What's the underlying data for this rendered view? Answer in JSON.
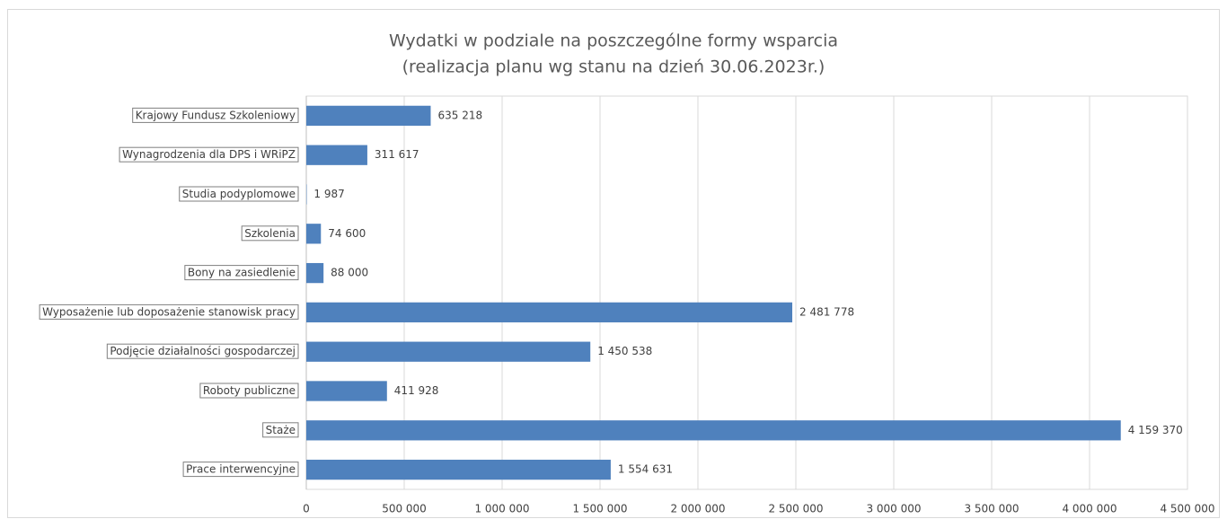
{
  "chart_data": {
    "type": "bar",
    "orientation": "horizontal",
    "title": [
      "Wydatki w podziale na poszczególne formy wsparcia",
      "(realizacja planu wg stanu na dzień 30.06.2023r.)"
    ],
    "categories": [
      "Krajowy Fundusz Szkoleniowy",
      "Wynagrodzenia dla DPS i WRiPZ",
      "Studia podyplomowe",
      "Szkolenia",
      "Bony na zasiedlenie",
      "Wyposażenie lub doposażenie stanowisk pracy",
      "Podjęcie działalności gospodarczej",
      "Roboty publiczne",
      "Staże",
      "Prace interwencyjne"
    ],
    "values": [
      635218,
      311617,
      1987,
      74600,
      88000,
      2481778,
      1450538,
      411928,
      4159370,
      1554631
    ],
    "value_labels": [
      "635 218",
      "311 617",
      "1 987",
      "74 600",
      "88 000",
      "2 481 778",
      "1 450 538",
      "411 928",
      "4 159 370",
      "1 554 631"
    ],
    "color": "#4f81bd",
    "xlim": [
      0,
      4500000
    ],
    "xticks": [
      0,
      {
        "value": 500000,
        "label": "500 000"
      },
      {
        "value": 1000000,
        "label": "1 000 000"
      },
      {
        "value": 1500000,
        "label": "1 500 000"
      },
      {
        "value": 2000000,
        "label": "2 000 000"
      },
      {
        "value": 2500000,
        "label": "2 500 000"
      },
      {
        "value": 3000000,
        "label": "3 000 000"
      },
      {
        "value": 3500000,
        "label": "3 500 000"
      },
      {
        "value": 4000000,
        "label": "4 000 000"
      },
      {
        "value": 4500000,
        "label": "4 500 000"
      }
    ],
    "grid": true
  }
}
